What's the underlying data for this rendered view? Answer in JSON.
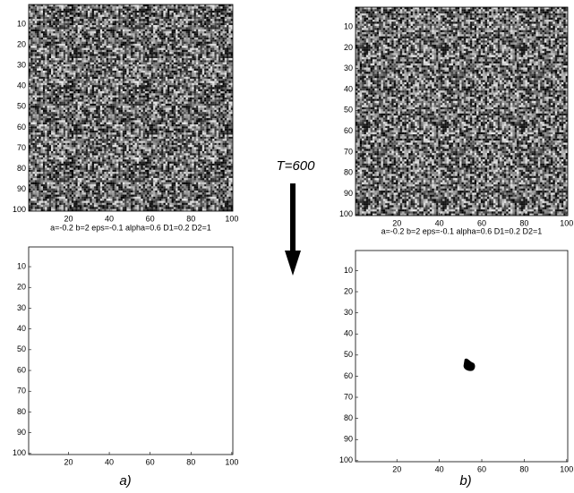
{
  "chart_data": [
    {
      "type": "image",
      "fill": "noise",
      "xlim": [
        0.5,
        100.5
      ],
      "ylim": [
        100.5,
        0.5
      ],
      "xticks": [
        20,
        40,
        60,
        80,
        100
      ],
      "yticks": [
        10,
        20,
        30,
        40,
        50,
        60,
        70,
        80,
        90,
        100
      ]
    },
    {
      "type": "image",
      "fill": "noise",
      "xlim": [
        0.5,
        100.5
      ],
      "ylim": [
        100.5,
        0.5
      ],
      "xticks": [
        20,
        40,
        60,
        80,
        100
      ],
      "yticks": [
        10,
        20,
        30,
        40,
        50,
        60,
        70,
        80,
        90,
        100
      ]
    },
    {
      "type": "image",
      "fill": "blank",
      "title": "a=-0.2 b=2 eps=-0.1 alpha=0.6 D1=0.2 D2=1",
      "xlim": [
        0.5,
        100.5
      ],
      "ylim": [
        100.5,
        0.5
      ],
      "xticks": [
        20,
        40,
        60,
        80,
        100
      ],
      "yticks": [
        10,
        20,
        30,
        40,
        50,
        60,
        70,
        80,
        90,
        100
      ]
    },
    {
      "type": "image",
      "fill": "blank",
      "title": "a=-0.2 b=2 eps=-0.1 alpha=0.6 D1=0.2 D2=1",
      "xlim": [
        0.5,
        100.5
      ],
      "ylim": [
        100.5,
        0.5
      ],
      "xticks": [
        20,
        40,
        60,
        80,
        100
      ],
      "yticks": [
        10,
        20,
        30,
        40,
        50,
        60,
        70,
        80,
        90,
        100
      ],
      "blob": {
        "x": [
          54
        ],
        "y": [
          55
        ]
      }
    }
  ],
  "annotations": [
    "T=600",
    "a)",
    "b)"
  ]
}
